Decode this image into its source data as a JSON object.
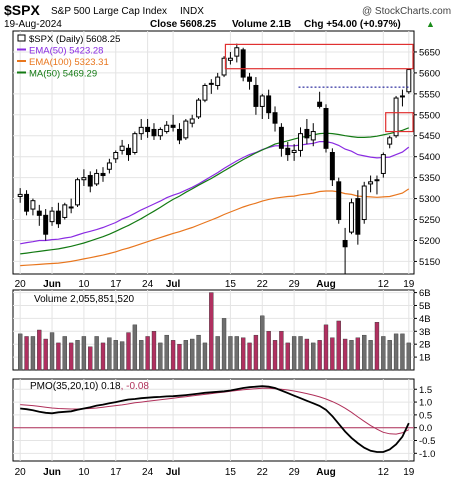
{
  "header": {
    "symbol": "$SPX",
    "name": "S&P 500 Large Cap Index",
    "exchange": "INDX",
    "watermark": "@ StockCharts.com",
    "date": "19-Aug-2024",
    "close": "Close 5608.25",
    "volume": "Volume 2.1B",
    "change": "Chg +54.00 (+0.97%)",
    "change_arrow": "▲"
  },
  "legend": [
    {
      "text": "$SPX (Daily) 5608.25",
      "color": "#000000"
    },
    {
      "text": "EMA(50) 5423.28",
      "color": "#8a2be2"
    },
    {
      "text": "EMA(100) 5323.31",
      "color": "#e8761e"
    },
    {
      "text": "MA(50) 5469.29",
      "color": "#137a13"
    }
  ],
  "volume_label": "Volume 2,055,851,520",
  "pmo_label_main": "PMO(35,20,10) 0.18",
  "pmo_label_signal": ", -0.08",
  "colors": {
    "up_candle": "#000000",
    "down_candle": "#000000",
    "ema50": "#8a2be2",
    "ema100": "#e8761e",
    "ma50": "#137a13",
    "vol_up": "#6e6e6e",
    "vol_down": "#b03060",
    "pmo": "#000000",
    "pmo_signal": "#b0305a",
    "zero_line": "#b0305a",
    "box": "#e03030",
    "resistance": "#00008b"
  },
  "chart_data": {
    "type": "candlestick",
    "x_tick_labels": [
      "20",
      "Jun",
      "10",
      "17",
      "24",
      "Jul",
      "15",
      "22",
      "29",
      "Aug",
      "12",
      "19"
    ],
    "price_axis": {
      "ylim": [
        5120,
        5700
      ],
      "ticks": [
        5150,
        5200,
        5250,
        5300,
        5350,
        5400,
        5450,
        5500,
        5550,
        5600,
        5650
      ]
    },
    "candles": [
      {
        "o": 5305,
        "h": 5325,
        "l": 5290,
        "c": 5310
      },
      {
        "o": 5310,
        "h": 5320,
        "l": 5260,
        "c": 5270
      },
      {
        "o": 5275,
        "h": 5300,
        "l": 5260,
        "c": 5295
      },
      {
        "o": 5270,
        "h": 5285,
        "l": 5235,
        "c": 5260
      },
      {
        "o": 5260,
        "h": 5275,
        "l": 5200,
        "c": 5215
      },
      {
        "o": 5245,
        "h": 5280,
        "l": 5235,
        "c": 5270
      },
      {
        "o": 5270,
        "h": 5290,
        "l": 5230,
        "c": 5240
      },
      {
        "o": 5255,
        "h": 5290,
        "l": 5250,
        "c": 5285
      },
      {
        "o": 5280,
        "h": 5300,
        "l": 5265,
        "c": 5280
      },
      {
        "o": 5285,
        "h": 5350,
        "l": 5280,
        "c": 5345
      },
      {
        "o": 5345,
        "h": 5370,
        "l": 5330,
        "c": 5350
      },
      {
        "o": 5355,
        "h": 5365,
        "l": 5315,
        "c": 5330
      },
      {
        "o": 5335,
        "h": 5370,
        "l": 5330,
        "c": 5360
      },
      {
        "o": 5360,
        "h": 5375,
        "l": 5340,
        "c": 5355
      },
      {
        "o": 5370,
        "h": 5395,
        "l": 5360,
        "c": 5385
      },
      {
        "o": 5395,
        "h": 5415,
        "l": 5385,
        "c": 5410
      },
      {
        "o": 5415,
        "h": 5440,
        "l": 5405,
        "c": 5425
      },
      {
        "o": 5420,
        "h": 5430,
        "l": 5390,
        "c": 5405
      },
      {
        "o": 5410,
        "h": 5460,
        "l": 5405,
        "c": 5455
      },
      {
        "o": 5455,
        "h": 5490,
        "l": 5440,
        "c": 5470
      },
      {
        "o": 5470,
        "h": 5490,
        "l": 5445,
        "c": 5460
      },
      {
        "o": 5465,
        "h": 5480,
        "l": 5440,
        "c": 5450
      },
      {
        "o": 5450,
        "h": 5470,
        "l": 5440,
        "c": 5465
      },
      {
        "o": 5460,
        "h": 5485,
        "l": 5455,
        "c": 5475
      },
      {
        "o": 5475,
        "h": 5500,
        "l": 5460,
        "c": 5470
      },
      {
        "o": 5465,
        "h": 5480,
        "l": 5430,
        "c": 5440
      },
      {
        "o": 5445,
        "h": 5490,
        "l": 5440,
        "c": 5485
      },
      {
        "o": 5480,
        "h": 5500,
        "l": 5470,
        "c": 5490
      },
      {
        "o": 5495,
        "h": 5540,
        "l": 5490,
        "c": 5535
      },
      {
        "o": 5535,
        "h": 5575,
        "l": 5530,
        "c": 5570
      },
      {
        "o": 5575,
        "h": 5585,
        "l": 5550,
        "c": 5575
      },
      {
        "o": 5570,
        "h": 5600,
        "l": 5560,
        "c": 5590
      },
      {
        "o": 5595,
        "h": 5640,
        "l": 5590,
        "c": 5635
      },
      {
        "o": 5630,
        "h": 5650,
        "l": 5620,
        "c": 5635
      },
      {
        "o": 5640,
        "h": 5670,
        "l": 5625,
        "c": 5660
      },
      {
        "o": 5655,
        "h": 5660,
        "l": 5580,
        "c": 5590
      },
      {
        "o": 5590,
        "h": 5600,
        "l": 5560,
        "c": 5580
      },
      {
        "o": 5570,
        "h": 5590,
        "l": 5500,
        "c": 5520
      },
      {
        "o": 5520,
        "h": 5550,
        "l": 5490,
        "c": 5545
      },
      {
        "o": 5545,
        "h": 5560,
        "l": 5490,
        "c": 5505
      },
      {
        "o": 5505,
        "h": 5520,
        "l": 5460,
        "c": 5480
      },
      {
        "o": 5470,
        "h": 5480,
        "l": 5400,
        "c": 5420
      },
      {
        "o": 5420,
        "h": 5435,
        "l": 5390,
        "c": 5405
      },
      {
        "o": 5410,
        "h": 5430,
        "l": 5390,
        "c": 5415
      },
      {
        "o": 5415,
        "h": 5470,
        "l": 5400,
        "c": 5455
      },
      {
        "o": 5465,
        "h": 5490,
        "l": 5430,
        "c": 5445
      },
      {
        "o": 5440,
        "h": 5480,
        "l": 5425,
        "c": 5460
      },
      {
        "o": 5530,
        "h": 5555,
        "l": 5515,
        "c": 5520
      },
      {
        "o": 5515,
        "h": 5525,
        "l": 5410,
        "c": 5420
      },
      {
        "o": 5410,
        "h": 5420,
        "l": 5330,
        "c": 5345
      },
      {
        "o": 5340,
        "h": 5350,
        "l": 5240,
        "c": 5250
      },
      {
        "o": 5200,
        "h": 5230,
        "l": 5120,
        "c": 5185
      },
      {
        "o": 5220,
        "h": 5300,
        "l": 5215,
        "c": 5290
      },
      {
        "o": 5300,
        "h": 5320,
        "l": 5190,
        "c": 5215
      },
      {
        "o": 5250,
        "h": 5340,
        "l": 5240,
        "c": 5330
      },
      {
        "o": 5335,
        "h": 5355,
        "l": 5315,
        "c": 5340
      },
      {
        "o": 5345,
        "h": 5355,
        "l": 5310,
        "c": 5345
      },
      {
        "o": 5360,
        "h": 5410,
        "l": 5350,
        "c": 5405
      },
      {
        "o": 5430,
        "h": 5450,
        "l": 5420,
        "c": 5445
      },
      {
        "o": 5450,
        "h": 5545,
        "l": 5445,
        "c": 5540
      },
      {
        "o": 5545,
        "h": 5560,
        "l": 5520,
        "c": 5545
      },
      {
        "o": 5555,
        "h": 5605,
        "l": 5550,
        "c": 5608
      }
    ],
    "series": [
      {
        "name": "EMA(50)",
        "values": [
          5192,
          5195,
          5197,
          5200,
          5200,
          5202,
          5203,
          5206,
          5208,
          5213,
          5218,
          5222,
          5226,
          5231,
          5237,
          5243,
          5251,
          5257,
          5265,
          5273,
          5280,
          5287,
          5294,
          5302,
          5308,
          5313,
          5320,
          5327,
          5335,
          5344,
          5353,
          5362,
          5372,
          5381,
          5390,
          5398,
          5405,
          5410,
          5417,
          5422,
          5426,
          5426,
          5426,
          5426,
          5428,
          5430,
          5432,
          5436,
          5436,
          5433,
          5427,
          5418,
          5413,
          5405,
          5402,
          5399,
          5397,
          5398,
          5399,
          5405,
          5411,
          5423
        ]
      },
      {
        "name": "EMA(100)",
        "values": [
          5140,
          5141,
          5142,
          5143,
          5144,
          5145,
          5146,
          5148,
          5150,
          5153,
          5156,
          5159,
          5162,
          5165,
          5169,
          5173,
          5178,
          5182,
          5187,
          5192,
          5197,
          5202,
          5207,
          5212,
          5217,
          5221,
          5226,
          5231,
          5237,
          5243,
          5249,
          5255,
          5262,
          5268,
          5274,
          5280,
          5285,
          5289,
          5294,
          5298,
          5301,
          5303,
          5305,
          5306,
          5309,
          5311,
          5313,
          5317,
          5318,
          5318,
          5316,
          5312,
          5310,
          5306,
          5305,
          5304,
          5303,
          5304,
          5305,
          5309,
          5313,
          5323
        ]
      },
      {
        "name": "MA(50)",
        "values": [
          5168,
          5170,
          5172,
          5174,
          5176,
          5178,
          5180,
          5183,
          5186,
          5190,
          5194,
          5199,
          5204,
          5209,
          5215,
          5222,
          5229,
          5236,
          5244,
          5252,
          5261,
          5270,
          5279,
          5289,
          5298,
          5306,
          5315,
          5323,
          5332,
          5340,
          5348,
          5357,
          5366,
          5375,
          5384,
          5393,
          5401,
          5409,
          5416,
          5423,
          5430,
          5434,
          5438,
          5442,
          5446,
          5449,
          5452,
          5455,
          5456,
          5455,
          5453,
          5450,
          5448,
          5446,
          5446,
          5447,
          5449,
          5452,
          5455,
          5459,
          5463,
          5469
        ]
      }
    ],
    "volume": {
      "axis_ticks": [
        "6B",
        "5B",
        "4B",
        "3B",
        "2B",
        "1B"
      ],
      "ylim": [
        0,
        6.2
      ],
      "values": [
        2.8,
        2.6,
        2.6,
        3.1,
        2.4,
        2.9,
        2.1,
        2.6,
        2.1,
        2.3,
        2.6,
        1.8,
        2.6,
        2.1,
        2.5,
        2.3,
        2.2,
        2.9,
        3.5,
        2.3,
        2.6,
        3.0,
        2.1,
        2.7,
        2.3,
        2.0,
        2.3,
        2.4,
        2.7,
        2.1,
        6.0,
        2.6,
        4.0,
        2.6,
        2.6,
        2.5,
        2.1,
        2.7,
        4.2,
        3.0,
        2.3,
        3.0,
        2.1,
        2.6,
        2.6,
        2.4,
        2.1,
        2.3,
        3.5,
        2.5,
        3.8,
        2.4,
        2.3,
        2.5,
        2.7,
        2.3,
        3.7,
        2.6,
        2.3,
        2.8,
        2.8,
        2.1
      ],
      "down": [
        false,
        true,
        false,
        true,
        true,
        false,
        true,
        false,
        true,
        false,
        false,
        true,
        false,
        true,
        false,
        false,
        false,
        true,
        false,
        false,
        true,
        true,
        false,
        false,
        true,
        true,
        false,
        false,
        false,
        false,
        true,
        false,
        false,
        false,
        false,
        true,
        true,
        true,
        false,
        true,
        true,
        true,
        true,
        false,
        false,
        true,
        false,
        true,
        true,
        true,
        true,
        true,
        false,
        true,
        false,
        false,
        true,
        false,
        false,
        false,
        false,
        false
      ]
    },
    "pmo": {
      "axis_ticks": [
        1.5,
        1.0,
        0.5,
        0.0,
        -0.5,
        -1.0
      ],
      "ylim": [
        -1.3,
        1.9
      ],
      "pmo": [
        0.75,
        0.72,
        0.68,
        0.62,
        0.58,
        0.56,
        0.6,
        0.62,
        0.64,
        0.7,
        0.75,
        0.8,
        0.86,
        0.9,
        0.95,
        1.0,
        1.05,
        1.1,
        1.12,
        1.15,
        1.17,
        1.19,
        1.2,
        1.22,
        1.23,
        1.25,
        1.27,
        1.3,
        1.33,
        1.36,
        1.38,
        1.4,
        1.42,
        1.45,
        1.5,
        1.55,
        1.58,
        1.6,
        1.62,
        1.6,
        1.55,
        1.45,
        1.35,
        1.25,
        1.15,
        1.05,
        0.95,
        0.85,
        0.7,
        0.45,
        0.15,
        -0.15,
        -0.4,
        -0.6,
        -0.78,
        -0.9,
        -0.95,
        -0.95,
        -0.85,
        -0.65,
        -0.35,
        0.18
      ],
      "signal": [
        0.9,
        0.88,
        0.86,
        0.83,
        0.8,
        0.77,
        0.75,
        0.74,
        0.73,
        0.73,
        0.74,
        0.75,
        0.77,
        0.8,
        0.83,
        0.86,
        0.89,
        0.93,
        0.97,
        1.0,
        1.03,
        1.06,
        1.09,
        1.12,
        1.15,
        1.18,
        1.21,
        1.24,
        1.27,
        1.3,
        1.33,
        1.36,
        1.39,
        1.42,
        1.45,
        1.48,
        1.5,
        1.52,
        1.54,
        1.54,
        1.52,
        1.5,
        1.47,
        1.43,
        1.38,
        1.33,
        1.27,
        1.2,
        1.12,
        1.02,
        0.9,
        0.76,
        0.6,
        0.42,
        0.25,
        0.08,
        -0.06,
        -0.18,
        -0.24,
        -0.25,
        -0.2,
        -0.08
      ]
    }
  }
}
